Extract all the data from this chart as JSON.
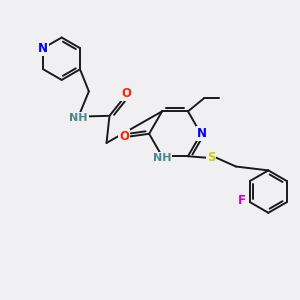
{
  "background_color": "#f0f0f2",
  "bond_color": "#1a1a1a",
  "atom_colors": {
    "N": "#0000ff",
    "O": "#ff2200",
    "S": "#cccc00",
    "F": "#cc00cc",
    "NH": "#4a8888",
    "C": "#1a1a1a"
  },
  "lw": 1.4,
  "fs": 8.5
}
